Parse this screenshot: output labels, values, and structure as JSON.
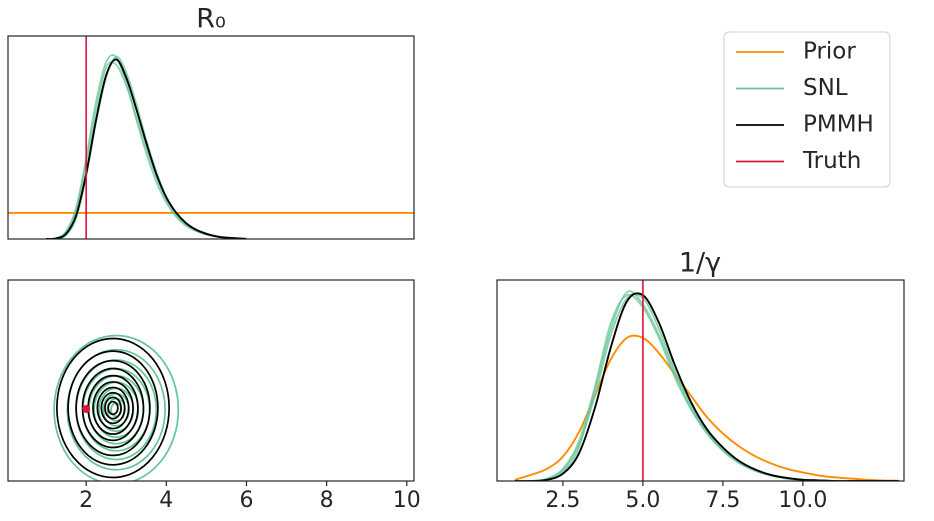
{
  "chart_data": [
    {
      "type": "line",
      "title": "R₀",
      "x": [
        1.0,
        1.25,
        1.5,
        1.75,
        2.0,
        2.25,
        2.5,
        2.75,
        3.0,
        3.25,
        3.5,
        3.75,
        4.0,
        4.25,
        4.5,
        4.75,
        5.0,
        5.25,
        5.5,
        6.0
      ],
      "xlim": [
        0.05,
        10.18
      ],
      "ylim": [
        0,
        0.78
      ],
      "series": [
        {
          "name": "Prior",
          "color": "#ff8c00",
          "x": [
            0.05,
            10.18
          ],
          "values": [
            0.1,
            0.1
          ]
        },
        {
          "name": "SNL",
          "color": "#66c597",
          "runs": [
            [
              0,
              0.003,
              0.03,
              0.12,
              0.31,
              0.53,
              0.68,
              0.7,
              0.6,
              0.46,
              0.33,
              0.22,
              0.14,
              0.085,
              0.05,
              0.03,
              0.017,
              0.009,
              0.005,
              0.001
            ],
            [
              0,
              0.002,
              0.025,
              0.11,
              0.29,
              0.5,
              0.66,
              0.67,
              0.59,
              0.47,
              0.35,
              0.24,
              0.15,
              0.09,
              0.055,
              0.032,
              0.018,
              0.01,
              0.005,
              0.001
            ],
            [
              0,
              0.001,
              0.015,
              0.08,
              0.24,
              0.45,
              0.62,
              0.7,
              0.64,
              0.52,
              0.38,
              0.26,
              0.16,
              0.1,
              0.06,
              0.035,
              0.02,
              0.011,
              0.006,
              0.002
            ]
          ]
        },
        {
          "name": "PMMH",
          "color": "#000000",
          "values": [
            0,
            0.002,
            0.02,
            0.09,
            0.25,
            0.46,
            0.63,
            0.69,
            0.62,
            0.5,
            0.37,
            0.25,
            0.16,
            0.1,
            0.06,
            0.035,
            0.02,
            0.01,
            0.005,
            0
          ]
        }
      ],
      "truth": {
        "name": "Truth",
        "color": "#dc143c",
        "value": 2
      },
      "legend": "upper right"
    },
    {
      "type": "contour",
      "xlim": [
        0.05,
        10.18
      ],
      "ylim": [
        0.44,
        13.16
      ],
      "xticks": [
        2,
        4,
        6,
        8,
        10
      ],
      "series": [
        {
          "color": "#66c597",
          "center": [
            2.75,
            4.95
          ],
          "rx": [
            1.55,
            1.22,
            1.0,
            0.83,
            0.68,
            0.55,
            0.43,
            0.32,
            0.22,
            0.13
          ],
          "ry": [
            4.7,
            3.8,
            3.15,
            2.6,
            2.15,
            1.74,
            1.36,
            1.02,
            0.7,
            0.42
          ]
        },
        {
          "color": "#000000",
          "center": [
            2.67,
            5.06
          ],
          "rx": [
            1.4,
            1.12,
            0.92,
            0.76,
            0.62,
            0.5,
            0.39,
            0.29,
            0.2,
            0.12
          ],
          "ry": [
            4.4,
            3.6,
            3.0,
            2.5,
            2.05,
            1.65,
            1.3,
            0.97,
            0.67,
            0.4
          ]
        }
      ],
      "truth": {
        "x": 2,
        "y": 5
      }
    },
    {
      "type": "line",
      "title": "1/γ",
      "x": [
        1,
        1.5,
        2,
        2.5,
        3,
        3.5,
        4,
        4.5,
        5,
        5.5,
        6,
        6.5,
        7,
        7.5,
        8,
        8.5,
        9,
        9.5,
        10,
        10.5,
        11,
        11.5,
        12,
        12.5,
        13
      ],
      "xlim": [
        0.44,
        13.16
      ],
      "ylim": [
        0,
        0.33
      ],
      "xticks": [
        2.5,
        {
          "value": 5,
          "label": "5.0"
        },
        7.5,
        {
          "value": 10,
          "label": "10.0"
        }
      ],
      "series": [
        {
          "color": "#ff8c00",
          "values": [
            0.002,
            0.01,
            0.02,
            0.04,
            0.08,
            0.14,
            0.2,
            0.235,
            0.235,
            0.21,
            0.175,
            0.14,
            0.105,
            0.078,
            0.057,
            0.041,
            0.029,
            0.02,
            0.014,
            0.009,
            0.006,
            0.004,
            0.002,
            0.001,
            0.0005
          ]
        },
        {
          "color": "#66c597",
          "runs": [
            [
              0,
              0,
              0.003,
              0.018,
              0.06,
              0.14,
              0.24,
              0.3,
              0.3,
              0.25,
              0.18,
              0.125,
              0.082,
              0.053,
              0.032,
              0.018,
              0.01,
              0.005,
              0.002,
              0.001,
              0,
              0,
              0,
              0,
              0
            ],
            [
              0,
              0,
              0.002,
              0.015,
              0.055,
              0.15,
              0.25,
              0.31,
              0.29,
              0.24,
              0.175,
              0.12,
              0.08,
              0.05,
              0.03,
              0.017,
              0.009,
              0.004,
              0.002,
              0.001,
              0,
              0,
              0,
              0,
              0
            ],
            [
              0,
              0,
              0.004,
              0.02,
              0.065,
              0.155,
              0.26,
              0.305,
              0.285,
              0.235,
              0.17,
              0.118,
              0.078,
              0.05,
              0.03,
              0.017,
              0.009,
              0.004,
              0.002,
              0.001,
              0,
              0,
              0,
              0,
              0
            ]
          ]
        },
        {
          "color": "#000000",
          "values": [
            0,
            0,
            0.002,
            0.012,
            0.045,
            0.12,
            0.22,
            0.295,
            0.305,
            0.26,
            0.19,
            0.13,
            0.085,
            0.055,
            0.033,
            0.019,
            0.01,
            0.005,
            0.002,
            0.001,
            0,
            0,
            0,
            0,
            0
          ]
        }
      ],
      "truth": {
        "value": 5
      }
    }
  ]
}
